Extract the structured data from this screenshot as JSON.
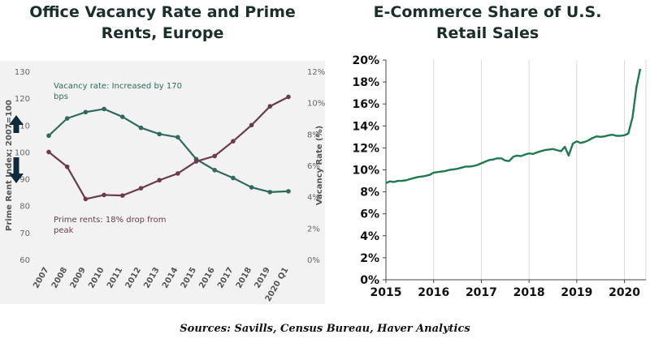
{
  "sources": "Sources: Savills, Census Bureau, Haver Analytics",
  "chart_data": [
    {
      "type": "line",
      "title_lines": [
        "Office Vacancy Rate and Prime",
        "Rents, Europe"
      ],
      "background": "#f2f2f2",
      "categories": [
        "2007",
        "2008",
        "2009",
        "2010",
        "2011",
        "2012",
        "2013",
        "2014",
        "2015",
        "2016",
        "2017",
        "2018",
        "2019",
        "2020 Q1"
      ],
      "y_left": {
        "label": "Prime Rent Index; 2007=100",
        "ticks": [
          "60",
          "70",
          "80",
          "90",
          "100",
          "110",
          "120",
          "130"
        ],
        "ylim": [
          60,
          130
        ]
      },
      "y_right": {
        "label": "Vacancy Rate (%)",
        "ticks": [
          "0%",
          "2%",
          "4%",
          "6%",
          "8%",
          "10%",
          "12%"
        ],
        "ylim": [
          0,
          12
        ]
      },
      "series": [
        {
          "name": "Vacancy rate",
          "axis": "right",
          "color": "#2e6b5e",
          "values": [
            7.9,
            9.0,
            9.4,
            9.6,
            9.1,
            8.4,
            8.0,
            7.8,
            6.4,
            5.7,
            5.2,
            4.6,
            4.3,
            4.35
          ]
        },
        {
          "name": "Prime rents",
          "axis": "left",
          "color": "#6b3a4e",
          "values": [
            100,
            94.5,
            82.5,
            84,
            83.8,
            86.5,
            89.5,
            92,
            96.5,
            98.5,
            104,
            110,
            117,
            120.5
          ]
        }
      ],
      "annotations": [
        {
          "text_lines": [
            "Vacancy rate: Increased by 170",
            "bps"
          ],
          "color": "#2e6b5e"
        },
        {
          "text_lines": [
            "Prime rents: 18% drop from",
            "peak"
          ],
          "color": "#6b3a4e"
        }
      ],
      "arrows": [
        "up",
        "down"
      ],
      "arrow_color": "#0f2a3d"
    },
    {
      "type": "line",
      "title_lines": [
        "E-Commerce Share of U.S.",
        "Retail Sales"
      ],
      "color": "#1e7a4e",
      "xlim": [
        2015,
        2020.45
      ],
      "x_ticks": [
        "2015",
        "2016",
        "2017",
        "2018",
        "2019",
        "2020"
      ],
      "ylim": [
        0,
        20
      ],
      "y_ticks": [
        "0%",
        "2%",
        "4%",
        "6%",
        "8%",
        "10%",
        "12%",
        "14%",
        "16%",
        "18%",
        "20%"
      ],
      "grid": "vertical",
      "x": [
        2015.0,
        2015.08,
        2015.17,
        2015.25,
        2015.33,
        2015.42,
        2015.5,
        2015.58,
        2015.67,
        2015.75,
        2015.83,
        2015.92,
        2016.0,
        2016.08,
        2016.17,
        2016.25,
        2016.33,
        2016.42,
        2016.5,
        2016.58,
        2016.67,
        2016.75,
        2016.83,
        2016.92,
        2017.0,
        2017.08,
        2017.17,
        2017.25,
        2017.33,
        2017.42,
        2017.5,
        2017.58,
        2017.67,
        2017.75,
        2017.83,
        2017.92,
        2018.0,
        2018.08,
        2018.17,
        2018.25,
        2018.33,
        2018.42,
        2018.5,
        2018.58,
        2018.67,
        2018.75,
        2018.83,
        2018.92,
        2019.0,
        2019.08,
        2019.17,
        2019.25,
        2019.33,
        2019.42,
        2019.5,
        2019.58,
        2019.67,
        2019.75,
        2019.83,
        2019.92,
        2020.0,
        2020.08,
        2020.17,
        2020.25,
        2020.33
      ],
      "y": [
        8.8,
        8.95,
        8.9,
        9.0,
        9.0,
        9.05,
        9.15,
        9.25,
        9.35,
        9.4,
        9.45,
        9.55,
        9.75,
        9.8,
        9.85,
        9.9,
        10.0,
        10.05,
        10.1,
        10.2,
        10.3,
        10.3,
        10.35,
        10.45,
        10.6,
        10.75,
        10.9,
        10.95,
        11.05,
        11.05,
        10.85,
        10.8,
        11.2,
        11.3,
        11.25,
        11.4,
        11.5,
        11.45,
        11.6,
        11.7,
        11.8,
        11.85,
        11.9,
        11.8,
        11.7,
        12.1,
        11.3,
        12.4,
        12.6,
        12.45,
        12.55,
        12.7,
        12.9,
        13.05,
        13.0,
        13.05,
        13.15,
        13.2,
        13.1,
        13.1,
        13.15,
        13.3,
        14.8,
        17.5,
        19.2
      ]
    }
  ]
}
